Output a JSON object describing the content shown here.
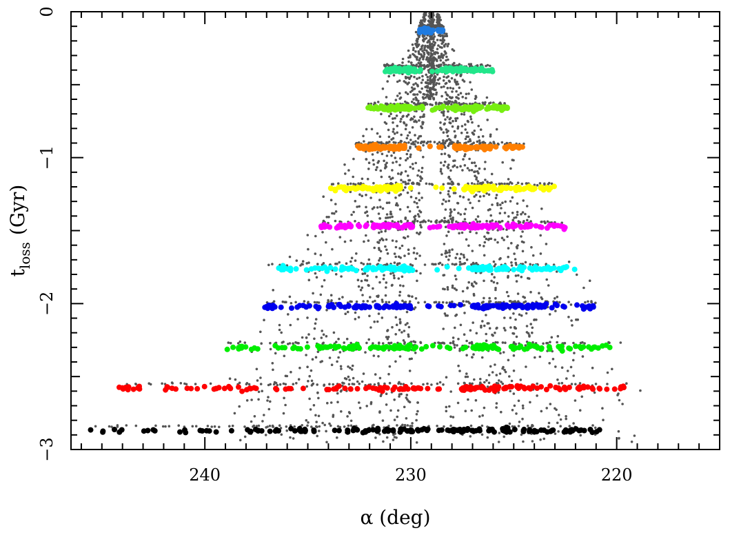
{
  "chart_data": {
    "type": "scatter",
    "title": "",
    "xlabel": "α (deg)",
    "ylabel_main": "t",
    "ylabel_sub": "loss",
    "ylabel_unit": "(Gyr)",
    "xlim": [
      246.5,
      215.0
    ],
    "ylim": [
      -3.0,
      0.0
    ],
    "x_reversed": true,
    "xticks": [
      240,
      230,
      220
    ],
    "xtick_labels": [
      "240",
      "230",
      "220"
    ],
    "yticks": [
      0,
      -1,
      -2,
      -3
    ],
    "ytick_labels": [
      "0",
      "−1",
      "−2",
      "−3"
    ],
    "grid": false,
    "legend": "none",
    "background_points": {
      "color": "#555555",
      "description_bands": "grey particles spread between the colored bands, forming a triangular stream around x=229"
    },
    "series": [
      {
        "color": "#1f7be0",
        "y": -0.13,
        "x_range": [
          229.6,
          228.4
        ],
        "gap": null
      },
      {
        "color": "#22e68a",
        "y": -0.4,
        "x_range": [
          231.3,
          226.0
        ],
        "gap": [
          229.8,
          228.3
        ]
      },
      {
        "color": "#77ee11",
        "y": -0.66,
        "x_range": [
          232.1,
          225.3
        ],
        "gap": [
          230.0,
          228.0
        ]
      },
      {
        "color": "#ff7f00",
        "y": -0.93,
        "x_range": [
          232.7,
          224.5
        ],
        "gap": [
          230.3,
          227.9
        ]
      },
      {
        "color": "#ffff00",
        "y": -1.21,
        "x_range": [
          233.9,
          223.0
        ],
        "gap": [
          230.5,
          227.5
        ]
      },
      {
        "color": "#ff00ff",
        "y": -1.47,
        "x_range": [
          234.6,
          222.5
        ],
        "gap": [
          230.0,
          228.0
        ]
      },
      {
        "color": "#00ffff",
        "y": -1.76,
        "x_range": [
          236.9,
          222.0
        ],
        "gap": [
          230.0,
          227.0
        ]
      },
      {
        "color": "#0000ee",
        "y": -2.02,
        "x_range": [
          237.1,
          221.0
        ],
        "gap": [
          230.0,
          227.0
        ]
      },
      {
        "color": "#00ee00",
        "y": -2.3,
        "x_range": [
          239.3,
          219.8
        ],
        "gap": [
          230.0,
          227.0
        ]
      },
      {
        "color": "#ff0000",
        "y": -2.58,
        "x_range": [
          244.2,
          219.3
        ],
        "gap": [
          229.5,
          227.5
        ]
      },
      {
        "color": "#000000",
        "y": -2.87,
        "x_range": [
          245.9,
          220.6
        ],
        "gap": [
          230.0,
          228.0
        ]
      }
    ]
  }
}
